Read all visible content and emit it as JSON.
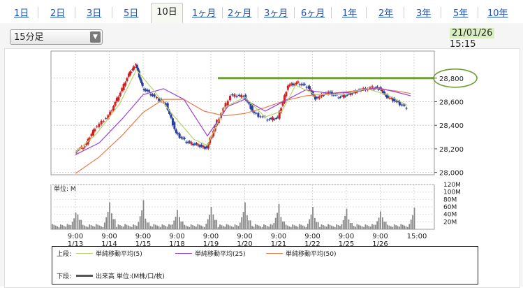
{
  "tabs": [
    {
      "label": "1日",
      "active": false
    },
    {
      "label": "2日",
      "active": false
    },
    {
      "label": "3日",
      "active": false
    },
    {
      "label": "5日",
      "active": false
    },
    {
      "label": "10日",
      "active": true
    },
    {
      "label": "1ヶ月",
      "active": false
    },
    {
      "label": "2ヶ月",
      "active": false
    },
    {
      "label": "3ヶ月",
      "active": false
    },
    {
      "label": "6ヶ月",
      "active": false
    },
    {
      "label": "1年",
      "active": false
    },
    {
      "label": "2年",
      "active": false
    },
    {
      "label": "3年",
      "active": false
    },
    {
      "label": "5年",
      "active": false
    },
    {
      "label": "10年",
      "active": false
    }
  ],
  "interval_select": {
    "value": "15分足"
  },
  "timestamp": {
    "date": "21/01/26",
    "time": "15:15"
  },
  "colors": {
    "up": "#cc2222",
    "down": "#2a3f9a",
    "ma5": "#b5d36a",
    "ma25": "#9b3fd8",
    "ma50": "#e87a4a",
    "annotation": "#6e9d35",
    "volume": "#888888"
  },
  "chart_data": {
    "type": "candlestick",
    "price": {
      "y_ticks": [
        "28,000",
        "28,200",
        "28,400",
        "28,600",
        "28,800"
      ],
      "ylim": [
        27980,
        29030
      ],
      "annotation_line_value": 28800,
      "close_points": [
        {
          "x": 0,
          "y": 28180
        },
        {
          "x": 0.3,
          "y": 28220
        },
        {
          "x": 0.6,
          "y": 28380
        },
        {
          "x": 1.0,
          "y": 28480
        },
        {
          "x": 1.3,
          "y": 28650
        },
        {
          "x": 1.6,
          "y": 28830
        },
        {
          "x": 1.8,
          "y": 28920
        },
        {
          "x": 2.0,
          "y": 28720
        },
        {
          "x": 2.3,
          "y": 28650
        },
        {
          "x": 2.7,
          "y": 28580
        },
        {
          "x": 3.0,
          "y": 28330
        },
        {
          "x": 3.3,
          "y": 28260
        },
        {
          "x": 3.6,
          "y": 28230
        },
        {
          "x": 3.9,
          "y": 28210
        },
        {
          "x": 4.2,
          "y": 28430
        },
        {
          "x": 4.6,
          "y": 28650
        },
        {
          "x": 5.0,
          "y": 28650
        },
        {
          "x": 5.3,
          "y": 28500
        },
        {
          "x": 5.7,
          "y": 28450
        },
        {
          "x": 6.0,
          "y": 28460
        },
        {
          "x": 6.3,
          "y": 28740
        },
        {
          "x": 6.6,
          "y": 28760
        },
        {
          "x": 6.9,
          "y": 28720
        },
        {
          "x": 7.1,
          "y": 28630
        },
        {
          "x": 7.5,
          "y": 28680
        },
        {
          "x": 7.8,
          "y": 28640
        },
        {
          "x": 8.1,
          "y": 28660
        },
        {
          "x": 8.4,
          "y": 28700
        },
        {
          "x": 8.8,
          "y": 28720
        },
        {
          "x": 9.0,
          "y": 28710
        },
        {
          "x": 9.2,
          "y": 28650
        },
        {
          "x": 9.5,
          "y": 28600
        },
        {
          "x": 9.8,
          "y": 28550
        }
      ],
      "ma5": [
        {
          "x": 0,
          "y": 28170
        },
        {
          "x": 0.6,
          "y": 28320
        },
        {
          "x": 1.3,
          "y": 28580
        },
        {
          "x": 1.8,
          "y": 28870
        },
        {
          "x": 2.3,
          "y": 28700
        },
        {
          "x": 2.9,
          "y": 28480
        },
        {
          "x": 3.5,
          "y": 28280
        },
        {
          "x": 3.9,
          "y": 28230
        },
        {
          "x": 4.4,
          "y": 28550
        },
        {
          "x": 5.0,
          "y": 28640
        },
        {
          "x": 5.6,
          "y": 28470
        },
        {
          "x": 6.1,
          "y": 28520
        },
        {
          "x": 6.5,
          "y": 28740
        },
        {
          "x": 7.1,
          "y": 28660
        },
        {
          "x": 7.9,
          "y": 28660
        },
        {
          "x": 8.6,
          "y": 28710
        },
        {
          "x": 9.2,
          "y": 28660
        },
        {
          "x": 9.8,
          "y": 28570
        }
      ],
      "ma25": [
        {
          "x": 0,
          "y": 28150
        },
        {
          "x": 0.7,
          "y": 28250
        },
        {
          "x": 1.4,
          "y": 28460
        },
        {
          "x": 2.0,
          "y": 28660
        },
        {
          "x": 2.6,
          "y": 28710
        },
        {
          "x": 3.2,
          "y": 28620
        },
        {
          "x": 3.9,
          "y": 28310
        },
        {
          "x": 4.5,
          "y": 28560
        },
        {
          "x": 5.0,
          "y": 28620
        },
        {
          "x": 5.6,
          "y": 28520
        },
        {
          "x": 6.2,
          "y": 28610
        },
        {
          "x": 6.8,
          "y": 28700
        },
        {
          "x": 7.5,
          "y": 28670
        },
        {
          "x": 8.2,
          "y": 28680
        },
        {
          "x": 8.9,
          "y": 28720
        },
        {
          "x": 9.5,
          "y": 28680
        },
        {
          "x": 9.9,
          "y": 28650
        }
      ],
      "ma50": [
        {
          "x": 0,
          "y": 27990
        },
        {
          "x": 0.7,
          "y": 28130
        },
        {
          "x": 1.4,
          "y": 28320
        },
        {
          "x": 2.0,
          "y": 28510
        },
        {
          "x": 2.6,
          "y": 28620
        },
        {
          "x": 3.2,
          "y": 28620
        },
        {
          "x": 3.8,
          "y": 28520
        },
        {
          "x": 4.4,
          "y": 28480
        },
        {
          "x": 5.0,
          "y": 28500
        },
        {
          "x": 5.6,
          "y": 28550
        },
        {
          "x": 6.2,
          "y": 28610
        },
        {
          "x": 6.8,
          "y": 28650
        },
        {
          "x": 7.5,
          "y": 28670
        },
        {
          "x": 8.2,
          "y": 28690
        },
        {
          "x": 8.9,
          "y": 28710
        },
        {
          "x": 9.5,
          "y": 28690
        },
        {
          "x": 9.9,
          "y": 28670
        }
      ]
    },
    "volume": {
      "label": "単位: M",
      "y_ticks": [
        "120M",
        "100M",
        "80M",
        "60M",
        "40M",
        "20M"
      ],
      "ylim": [
        0,
        120
      ],
      "session_peaks": [
        45,
        72,
        78,
        52,
        60,
        72,
        68,
        60,
        55,
        48,
        58
      ]
    },
    "x_ticks": [
      {
        "time": "9:00",
        "date": "1/13"
      },
      {
        "time": "9:00",
        "date": "1/14"
      },
      {
        "time": "9:00",
        "date": "1/15"
      },
      {
        "time": "9:00",
        "date": "1/18"
      },
      {
        "time": "9:00",
        "date": "1/19"
      },
      {
        "time": "9:00",
        "date": "1/20"
      },
      {
        "time": "9:00",
        "date": "1/21"
      },
      {
        "time": "9:00",
        "date": "1/22"
      },
      {
        "time": "9:00",
        "date": "1/25"
      },
      {
        "time": "9:00",
        "date": "1/26"
      },
      {
        "time": "15:00",
        "date": ""
      }
    ]
  },
  "legend": {
    "upper_label": "上段:",
    "lower_label": "下段:",
    "ma5": "単純移動平均(5)",
    "ma25": "単純移動平均(25)",
    "ma50": "単純移動平均(50)",
    "volume": "出来高 単位:(M株/口/枚)"
  }
}
